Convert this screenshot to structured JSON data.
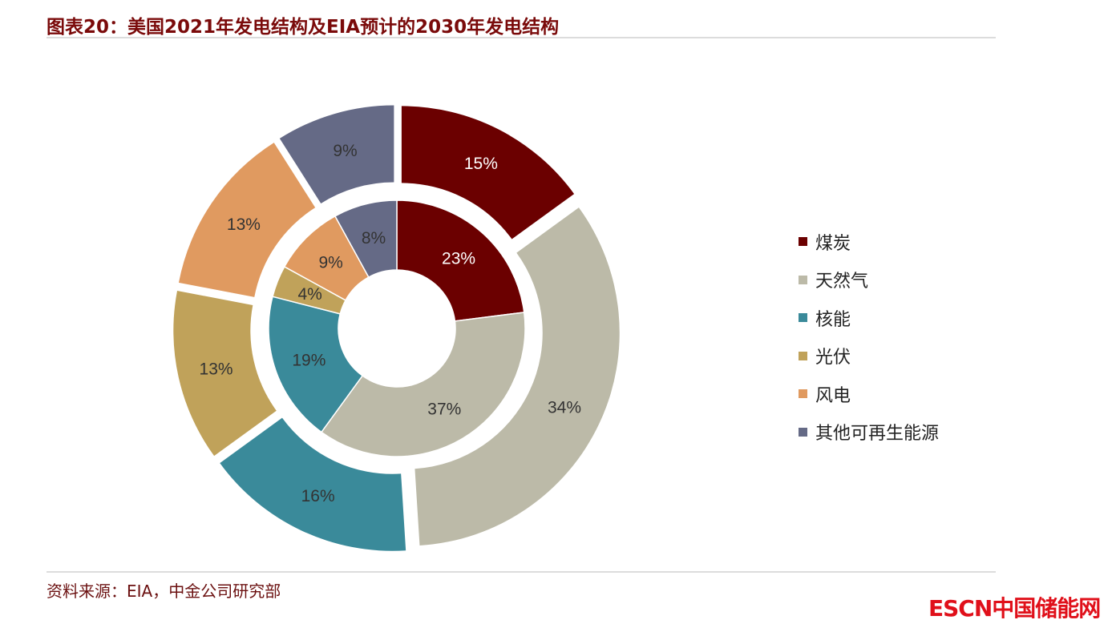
{
  "title": "图表20：美国2021年发电结构及EIA预计的2030年发电结构",
  "source": "资料来源：EIA，中金公司研究部",
  "watermark": "ESCN中国储能网",
  "chart_data": {
    "type": "pie",
    "subtype": "double-donut",
    "categories": [
      "煤炭",
      "天然气",
      "核能",
      "光伏",
      "风电",
      "其他可再生能源"
    ],
    "colors": [
      "#6b0000",
      "#bcbaa8",
      "#3a8a9a",
      "#c0a25a",
      "#e09a60",
      "#656a86"
    ],
    "series": [
      {
        "ring": "inner",
        "values": [
          23,
          37,
          19,
          4,
          9,
          8
        ],
        "labels": [
          "23%",
          "37%",
          "19%",
          "4%",
          "9%",
          "8%"
        ]
      },
      {
        "ring": "outer",
        "exploded": true,
        "values": [
          15,
          34,
          16,
          13,
          13,
          9
        ],
        "labels": [
          "15%",
          "34%",
          "16%",
          "13%",
          "13%",
          "9%"
        ]
      }
    ],
    "legend_position": "right"
  }
}
